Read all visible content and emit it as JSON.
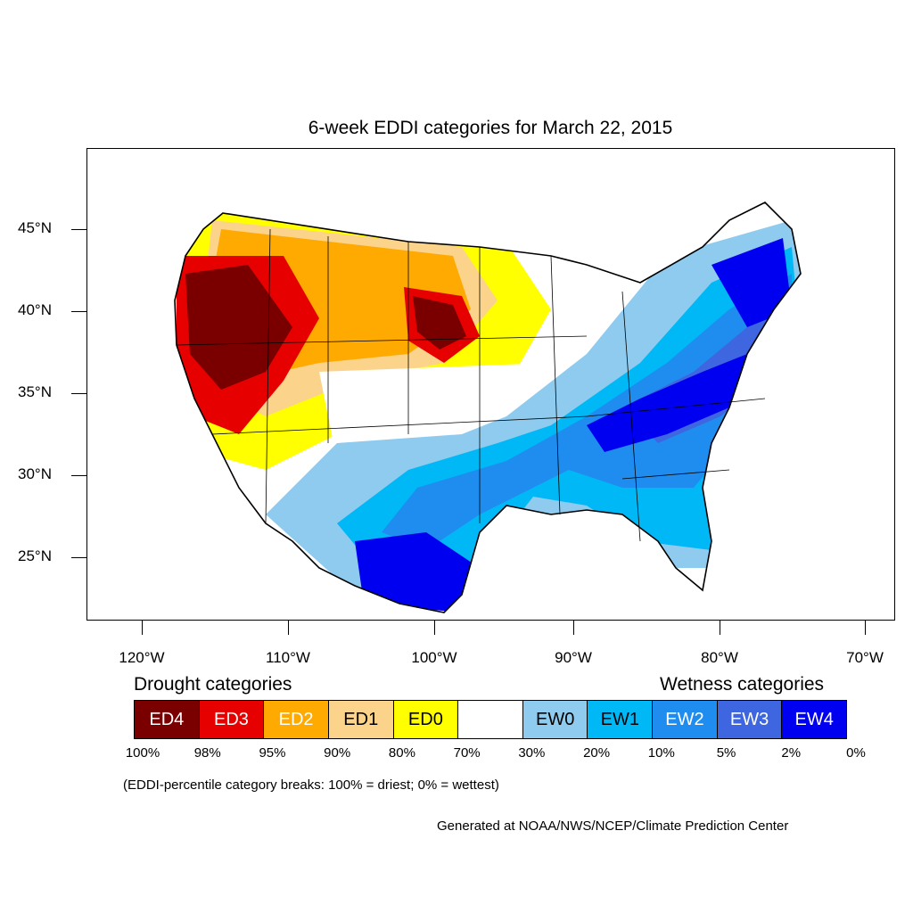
{
  "title": "6-week EDDI categories for March 22, 2015",
  "map": {
    "y_axis_labels": [
      "45°N",
      "40°N",
      "35°N",
      "30°N",
      "25°N"
    ],
    "x_axis_labels": [
      "120°W",
      "110°W",
      "100°W",
      "90°W",
      "80°W",
      "70°W"
    ]
  },
  "legend": {
    "drought_heading": "Drought categories",
    "wetness_heading": "Wetness categories",
    "boxes": [
      {
        "label": "ED4",
        "color": "#7a0000",
        "text_color": "#ffffff"
      },
      {
        "label": "ED3",
        "color": "#e60000",
        "text_color": "#ffffff"
      },
      {
        "label": "ED2",
        "color": "#ffaa00",
        "text_color": "#ffffff"
      },
      {
        "label": "ED1",
        "color": "#fcd38a",
        "text_color": "#000000"
      },
      {
        "label": "ED0",
        "color": "#ffff00",
        "text_color": "#000000"
      },
      {
        "label": "",
        "color": "#ffffff",
        "text_color": "#000000"
      },
      {
        "label": "EW0",
        "color": "#8ecbef",
        "text_color": "#000000"
      },
      {
        "label": "EW1",
        "color": "#00b8f5",
        "text_color": "#000000"
      },
      {
        "label": "EW2",
        "color": "#1f8cf0",
        "text_color": "#ffffff"
      },
      {
        "label": "EW3",
        "color": "#3d66e0",
        "text_color": "#ffffff"
      },
      {
        "label": "EW4",
        "color": "#0000f0",
        "text_color": "#ffffff"
      }
    ],
    "percentiles": [
      "100%",
      "98%",
      "95%",
      "90%",
      "80%",
      "70%",
      "30%",
      "20%",
      "10%",
      "5%",
      "2%",
      "0%"
    ]
  },
  "note": "(EDDI-percentile category breaks: 100% = driest; 0% = wettest)",
  "credit": "Generated at NOAA/NWS/NCEP/Climate Prediction Center"
}
